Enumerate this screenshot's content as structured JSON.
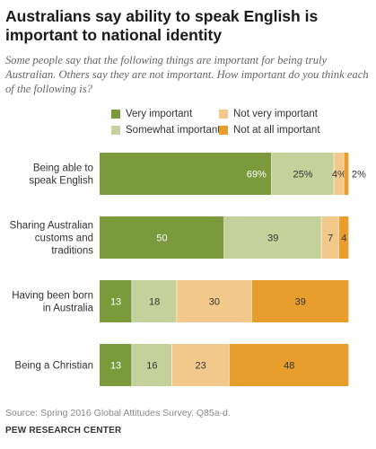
{
  "title": "Australians say ability to speak English is important to national identity",
  "subtitle": "Some people say that the following things are important for being truly Australian. Others say they are not important. How important do you think each of the following is?",
  "legend": [
    {
      "label": "Very important",
      "color": "#7a9a3b"
    },
    {
      "label": "Not very important",
      "color": "#f3c98b"
    },
    {
      "label": "Somewhat important",
      "color": "#c4d19a"
    },
    {
      "label": "Not at all important",
      "color": "#e89e2d"
    }
  ],
  "chart_data": {
    "type": "bar",
    "orientation": "horizontal",
    "stacked": true,
    "categories": [
      [
        "Being able to",
        "speak English"
      ],
      [
        "Sharing Australian",
        "customs and",
        "traditions"
      ],
      [
        "Having been born",
        "in Australia"
      ],
      [
        "Being a Christian"
      ]
    ],
    "series": [
      {
        "name": "Very important",
        "color": "#7a9a3b",
        "values": [
          69,
          50,
          13,
          13
        ],
        "labels": [
          "69%",
          "50",
          "13",
          "13"
        ]
      },
      {
        "name": "Somewhat important",
        "color": "#c4d19a",
        "values": [
          25,
          39,
          18,
          16
        ],
        "labels": [
          "25%",
          "39",
          "18",
          "16"
        ]
      },
      {
        "name": "Not very important",
        "color": "#f3c98b",
        "values": [
          4,
          7,
          30,
          23
        ],
        "labels": [
          "4%",
          "7",
          "30",
          "23"
        ]
      },
      {
        "name": "Not at all important",
        "color": "#e89e2d",
        "values": [
          2,
          4,
          39,
          48
        ],
        "labels": [
          "2%",
          "4",
          "39",
          "48"
        ]
      }
    ],
    "outside_labels": [
      {
        "row": 0,
        "series": 3,
        "text": "2%"
      }
    ],
    "xlim": [
      0,
      100
    ]
  },
  "source": "Source: Spring 2016 Global Attitudes Survey. Q85a-d.",
  "footer": "PEW RESEARCH CENTER"
}
